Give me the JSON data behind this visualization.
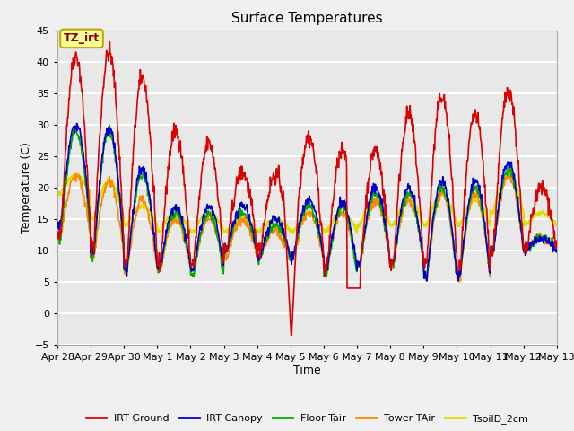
{
  "title": "Surface Temperatures",
  "xlabel": "Time",
  "ylabel": "Temperature (C)",
  "ylim": [
    -5,
    45
  ],
  "xlim": [
    0,
    15
  ],
  "yticks": [
    -5,
    0,
    5,
    10,
    15,
    20,
    25,
    30,
    35,
    40,
    45
  ],
  "xtick_labels": [
    "Apr 28",
    "Apr 29",
    "Apr 30",
    "May 1",
    "May 2",
    "May 3",
    "May 4",
    "May 5",
    "May 6",
    "May 7",
    "May 8",
    "May 9",
    "May 10",
    "May 11",
    "May 12",
    "May 13"
  ],
  "background_color": "#e8e8e8",
  "fig_background_color": "#f0f0f0",
  "grid_color": "#ffffff",
  "annotation_text": "TZ_irt",
  "annotation_bg": "#ffff99",
  "annotation_border": "#bbaa00",
  "series": {
    "IRT Ground": {
      "color": "#dd0000",
      "lw": 1.2
    },
    "IRT Canopy": {
      "color": "#0000cc",
      "lw": 1.2
    },
    "Floor Tair": {
      "color": "#00aa00",
      "lw": 1.2
    },
    "Tower TAir": {
      "color": "#ff8800",
      "lw": 1.2
    },
    "TsoilD_2cm": {
      "color": "#dddd00",
      "lw": 1.8
    }
  },
  "irt_ground_peaks": [
    41,
    41.5,
    37.5,
    29,
    27,
    22.5,
    22,
    28,
    25.5,
    26,
    31.5,
    34.5,
    31.5,
    35.5,
    20
  ],
  "irt_ground_base": [
    12,
    11,
    8,
    8,
    8,
    10,
    10,
    9,
    7,
    7,
    8,
    8,
    7,
    10,
    10
  ],
  "irt_canopy_peaks": [
    30,
    29.5,
    23,
    17,
    17,
    17,
    15,
    18,
    17.5,
    20,
    20,
    21,
    21,
    24,
    12
  ],
  "irt_canopy_base": [
    14,
    10,
    7,
    7.5,
    7,
    10,
    9,
    9,
    7,
    8,
    8,
    6,
    6,
    10,
    10
  ],
  "floor_tair_peaks": [
    29,
    29,
    22,
    16,
    16,
    16,
    14,
    17,
    17,
    19,
    19,
    20,
    20,
    23,
    12
  ],
  "floor_tair_base": [
    12,
    9,
    7,
    7,
    6,
    10,
    9,
    9,
    6,
    8,
    8,
    6,
    6,
    10,
    10
  ],
  "tower_tair_peaks": [
    22,
    21,
    18,
    15,
    15,
    15,
    13,
    16,
    16,
    18,
    18,
    19,
    19,
    22,
    12
  ],
  "tower_tair_base": [
    12,
    9,
    7,
    7,
    7,
    9,
    9,
    9,
    7,
    8,
    8,
    6,
    6,
    10,
    10
  ],
  "tsoil_peaks": [
    22,
    21,
    17,
    16,
    16,
    15,
    15,
    16,
    16,
    18,
    18,
    19,
    18,
    22,
    16
  ],
  "tsoil_base": [
    19,
    15,
    14,
    13,
    13,
    13,
    13,
    13,
    13,
    14,
    14,
    14,
    14,
    16,
    14
  ]
}
